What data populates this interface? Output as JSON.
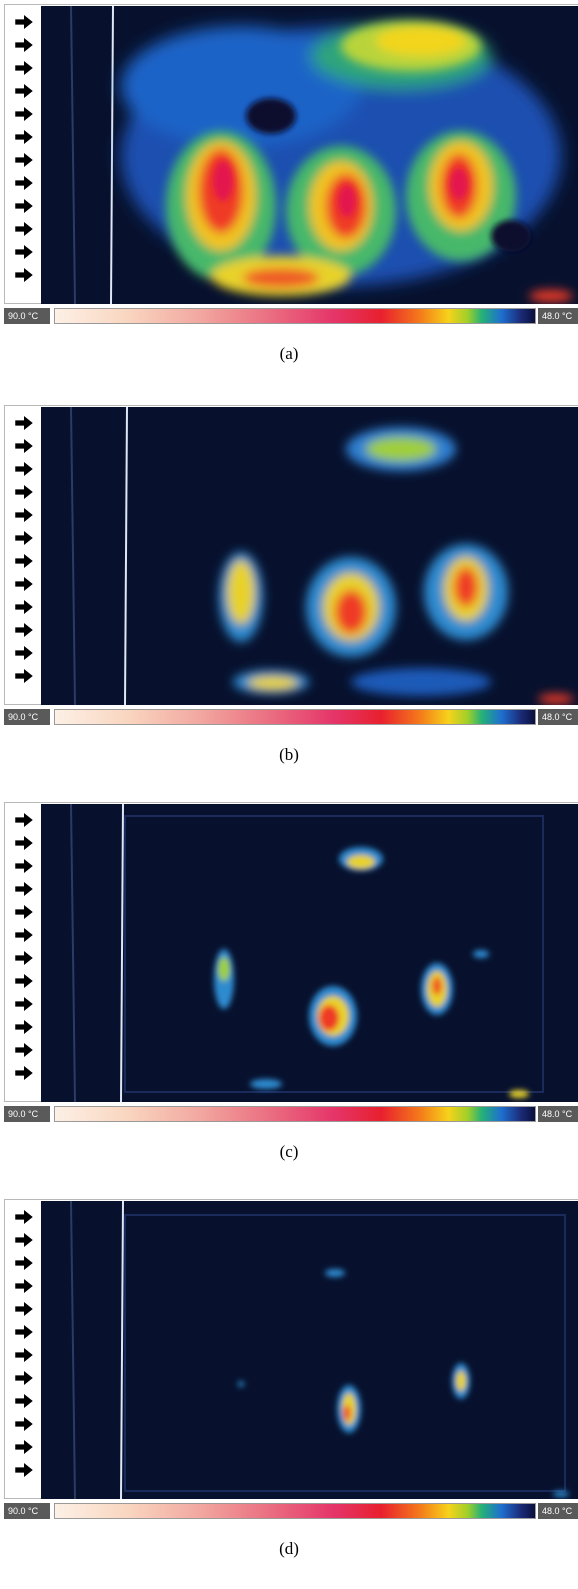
{
  "legend": {
    "max_label": "90.0 °C",
    "min_label": "48.0 °C",
    "scale_colors": [
      "#fdf0e6",
      "#f2a8a0",
      "#e5356a",
      "#e8202e",
      "#f47a1a",
      "#f7d21a",
      "#22b07a",
      "#1f6fd0",
      "#0b0f3a"
    ]
  },
  "panels": [
    {
      "caption": "(a)",
      "hot_spot_intensity": "high"
    },
    {
      "caption": "(b)",
      "hot_spot_intensity": "medium"
    },
    {
      "caption": "(c)",
      "hot_spot_intensity": "low"
    },
    {
      "caption": "(d)",
      "hot_spot_intensity": "very-low"
    }
  ],
  "icons": {
    "arrow": "arrow-right-icon",
    "arrow_count": 12
  }
}
